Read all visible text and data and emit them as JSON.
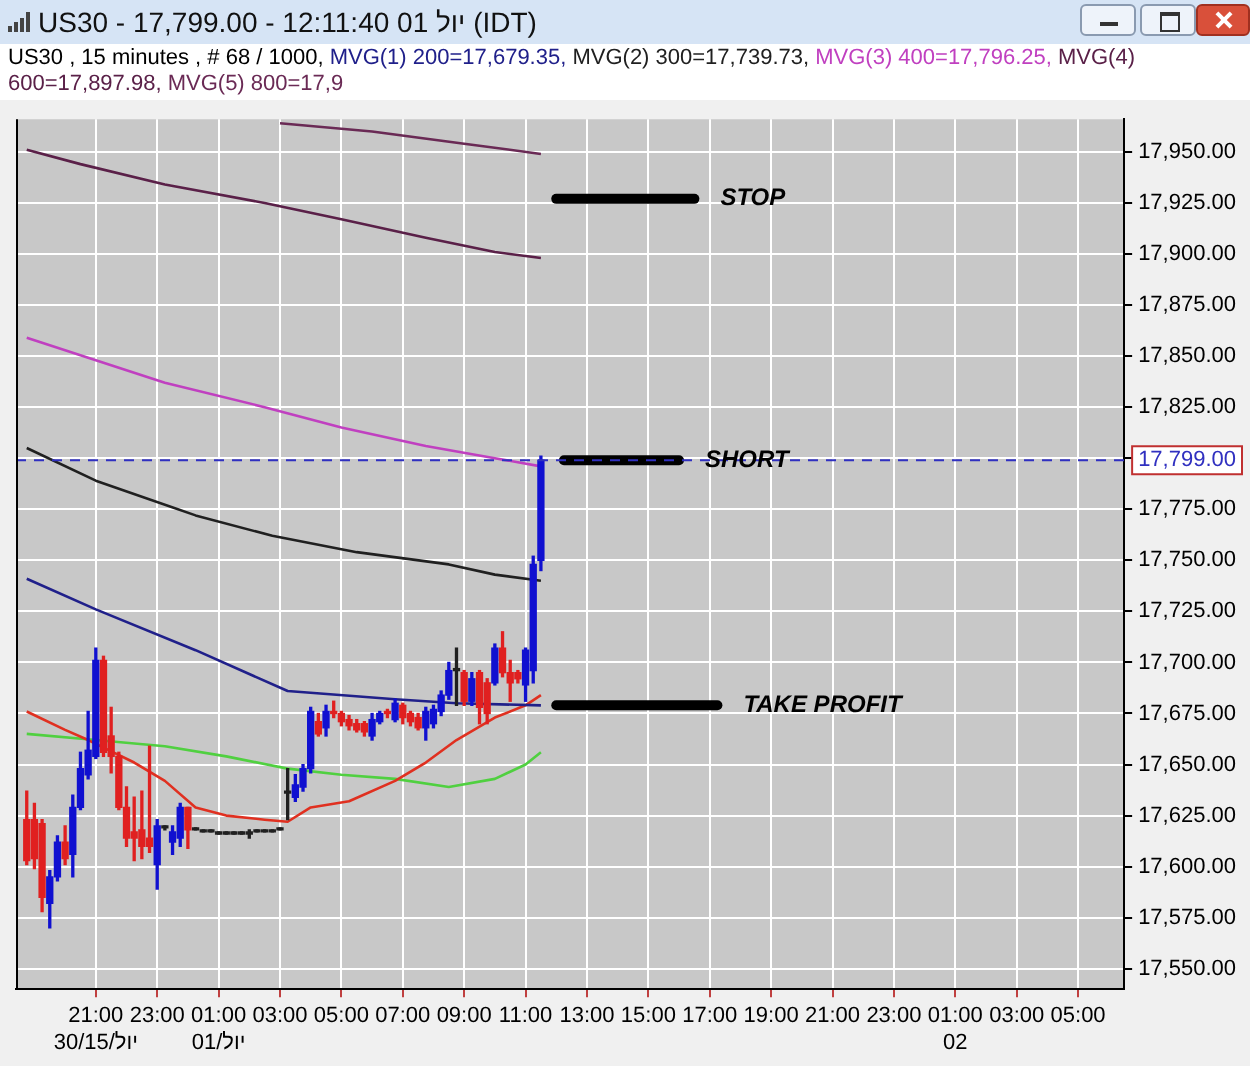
{
  "chart_data": {
    "type": "candlestick",
    "title": "US30 - 17,799.00 - 12:11:40  01 יול (IDT)",
    "subtitle": "US30 , 15 minutes , # 68 / 1000,",
    "x": [
      "--06-30T18:45",
      "--06-30T19:00",
      "--06-30T19:15",
      "--06-30T19:30",
      "--06-30T19:45",
      "--06-30T20:00",
      "--06-30T20:15",
      "--06-30T20:30",
      "--06-30T20:45",
      "--06-30T21:00",
      "--06-30T21:15",
      "--06-30T21:30",
      "--06-30T21:45",
      "--06-30T22:00",
      "--06-30T22:15",
      "--06-30T22:30",
      "--06-30T22:45",
      "--06-30T23:00",
      "--06-30T23:15",
      "--06-30T23:30",
      "--06-30T23:45",
      "--07-01T00:00",
      "--07-01T00:15",
      "--07-01T00:30",
      "--07-01T00:45",
      "--07-01T01:00",
      "--07-01T01:15",
      "--07-01T01:30",
      "--07-01T01:45",
      "--07-01T02:00",
      "--07-01T02:15",
      "--07-01T02:30",
      "--07-01T02:45",
      "--07-01T03:00",
      "--07-01T03:15",
      "--07-01T03:30",
      "--07-01T03:45",
      "--07-01T04:00",
      "--07-01T04:15",
      "--07-01T04:30",
      "--07-01T04:45",
      "--07-01T05:00",
      "--07-01T05:15",
      "--07-01T05:30",
      "--07-01T05:45",
      "--07-01T06:00",
      "--07-01T06:15",
      "--07-01T06:30",
      "--07-01T06:45",
      "--07-01T07:00",
      "--07-01T07:15",
      "--07-01T07:30",
      "--07-01T07:45",
      "--07-01T08:00",
      "--07-01T08:15",
      "--07-01T08:30",
      "--07-01T08:45",
      "--07-01T09:00",
      "--07-01T09:15",
      "--07-01T09:30",
      "--07-01T09:45",
      "--07-01T10:00",
      "--07-01T10:15",
      "--07-01T10:30",
      "--07-01T10:45",
      "--07-01T11:00",
      "--07-01T11:15",
      "--07-01T11:30"
    ],
    "ohlc": [
      [
        17623,
        17637,
        17601,
        17603
      ],
      [
        17623,
        17631,
        17599,
        17604
      ],
      [
        17621,
        17623,
        17578,
        17585
      ],
      [
        17582,
        17598,
        17570,
        17595
      ],
      [
        17595,
        17615,
        17593,
        17612
      ],
      [
        17612,
        17620,
        17601,
        17604
      ],
      [
        17606,
        17635,
        17595,
        17629
      ],
      [
        17629,
        17656,
        17628,
        17648
      ],
      [
        17645,
        17676,
        17643,
        17657
      ],
      [
        17654,
        17707,
        17653,
        17701
      ],
      [
        17701,
        17703,
        17654,
        17656
      ],
      [
        17664,
        17678,
        17646,
        17654
      ],
      [
        17654,
        17656,
        17628,
        17629
      ],
      [
        17629,
        17639,
        17610,
        17614
      ],
      [
        17617,
        17634,
        17603,
        17614
      ],
      [
        17618,
        17637,
        17604,
        17610
      ],
      [
        17614,
        17659,
        17607,
        17610
      ],
      [
        17601,
        17623,
        17589,
        17620
      ],
      [
        17619,
        17620,
        17618,
        17619
      ],
      [
        17612,
        17620,
        17606,
        17617
      ],
      [
        17614,
        17631,
        17610,
        17629
      ],
      [
        17629,
        17629,
        17609,
        17618
      ],
      [
        17618,
        17619,
        17618,
        17618
      ],
      [
        17617,
        17618,
        17617,
        17617
      ],
      [
        17617,
        17618,
        17617,
        17617
      ],
      [
        17616,
        17617,
        17616,
        17616
      ],
      [
        17616,
        17617,
        17616,
        17616
      ],
      [
        17616,
        17617,
        17616,
        17616
      ],
      [
        17616,
        17617,
        17616,
        17616
      ],
      [
        17616,
        17618,
        17614,
        17616
      ],
      [
        17617,
        17618,
        17617,
        17617
      ],
      [
        17617,
        17618,
        17617,
        17617
      ],
      [
        17617,
        17618,
        17617,
        17617
      ],
      [
        17618,
        17619,
        17618,
        17618
      ],
      [
        17636,
        17648,
        17623,
        17636
      ],
      [
        17634,
        17645,
        17632,
        17640
      ],
      [
        17639,
        17650,
        17637,
        17648
      ],
      [
        17648,
        17678,
        17646,
        17676
      ],
      [
        17671,
        17675,
        17664,
        17665
      ],
      [
        17668,
        17679,
        17664,
        17676
      ],
      [
        17676,
        17681,
        17673,
        17675
      ],
      [
        17675,
        17676,
        17669,
        17671
      ],
      [
        17672,
        17674,
        17667,
        17669
      ],
      [
        17670,
        17672,
        17666,
        17667
      ],
      [
        17670,
        17671,
        17664,
        17666
      ],
      [
        17664,
        17675,
        17662,
        17672
      ],
      [
        17671,
        17676,
        17670,
        17675
      ],
      [
        17676,
        17677,
        17673,
        17675
      ],
      [
        17672,
        17682,
        17671,
        17680
      ],
      [
        17679,
        17680,
        17670,
        17673
      ],
      [
        17675,
        17676,
        17669,
        17671
      ],
      [
        17673,
        17675,
        17667,
        17668
      ],
      [
        17668,
        17678,
        17662,
        17676
      ],
      [
        17670,
        17679,
        17668,
        17677
      ],
      [
        17676,
        17686,
        17674,
        17684
      ],
      [
        17684,
        17700,
        17682,
        17696
      ],
      [
        17696,
        17707,
        17679,
        17696
      ],
      [
        17695,
        17696,
        17679,
        17681
      ],
      [
        17681,
        17695,
        17679,
        17692
      ],
      [
        17695,
        17696,
        17670,
        17678
      ],
      [
        17690,
        17692,
        17670,
        17675
      ],
      [
        17690,
        17709,
        17689,
        17707
      ],
      [
        17707,
        17715,
        17693,
        17695
      ],
      [
        17695,
        17701,
        17681,
        17690
      ],
      [
        17695,
        17696,
        17690,
        17692
      ],
      [
        17689,
        17707,
        17681,
        17706
      ],
      [
        17696,
        17752,
        17690,
        17748
      ],
      [
        17750,
        17801,
        17745,
        17799
      ]
    ],
    "colors": [
      "#e02020",
      "#e02020",
      "#e02020",
      "#1010d0",
      "#1010d0",
      "#e02020",
      "#1010d0",
      "#1010d0",
      "#1010d0",
      "#1010d0",
      "#e02020",
      "#e02020",
      "#e02020",
      "#e02020",
      "#e02020",
      "#e02020",
      "#e02020",
      "#1010d0",
      "#202020",
      "#1010d0",
      "#1010d0",
      "#e02020",
      "#202020",
      "#202020",
      "#202020",
      "#202020",
      "#202020",
      "#202020",
      "#202020",
      "#202020",
      "#202020",
      "#202020",
      "#202020",
      "#202020",
      "#202020",
      "#1010d0",
      "#1010d0",
      "#1010d0",
      "#e02020",
      "#1010d0",
      "#e02020",
      "#e02020",
      "#e02020",
      "#e02020",
      "#e02020",
      "#1010d0",
      "#1010d0",
      "#e02020",
      "#1010d0",
      "#e02020",
      "#e02020",
      "#e02020",
      "#1010d0",
      "#1010d0",
      "#1010d0",
      "#1010d0",
      "#202020",
      "#e02020",
      "#1010d0",
      "#e02020",
      "#e02020",
      "#1010d0",
      "#e02020",
      "#e02020",
      "#e02020",
      "#1010d0",
      "#1010d0",
      "#1010d0"
    ],
    "series": [
      {
        "type": "line",
        "name": "MVG(1) 200=17,679.35,",
        "color": "#20208a",
        "x": [
          "--06-30T18:45",
          "--06-30T21:00",
          "--07-01T00:15",
          "--07-01T03:15",
          "--07-01T06:45",
          "--07-01T08:45",
          "--07-01T11:30"
        ],
        "values": [
          17741,
          17726,
          17706,
          17686,
          17682,
          17680,
          17679
        ]
      },
      {
        "type": "line",
        "name": "MVG(2) 300=17,739.73,",
        "color": "#202020",
        "x": [
          "--06-30T18:45",
          "--06-30T21:00",
          "--07-01T00:15",
          "--07-01T02:45",
          "--07-01T05:30",
          "--07-01T08:30",
          "--07-01T10:00",
          "--07-01T11:30"
        ],
        "values": [
          17805,
          17789,
          17772,
          17762,
          17754,
          17748,
          17743,
          17740
        ]
      },
      {
        "type": "line",
        "name": "MVG(3) 400=17,796.25,",
        "color": "#c040c0",
        "x": [
          "--06-30T18:45",
          "--06-30T21:00",
          "--06-30T23:15",
          "--07-01T02:30",
          "--07-01T05:00",
          "--07-01T07:45",
          "--07-01T10:00",
          "--07-01T11:30"
        ],
        "values": [
          17859,
          17848,
          17837,
          17825,
          17815,
          17806,
          17800,
          17796
        ]
      },
      {
        "type": "line",
        "name": "MVG(4) 600=17,897.98,",
        "color": "#5a2048",
        "x": [
          "--06-30T18:45",
          "--06-30T20:30",
          "--06-30T23:15",
          "--07-01T02:30",
          "--07-01T05:00",
          "--07-01T07:45",
          "--07-01T10:00",
          "--07-01T11:30"
        ],
        "values": [
          17951,
          17944,
          17934,
          17925,
          17917,
          17908,
          17901,
          17898
        ]
      },
      {
        "type": "line",
        "name": "MVG(5) 800=17,9",
        "color": "#6a2a55",
        "x": [
          "--07-01T03:00",
          "--07-01T06:00",
          "--07-01T09:00",
          "--07-01T11:30"
        ],
        "values": [
          17964,
          17960,
          17954,
          17949
        ]
      },
      {
        "type": "line",
        "color": "#e03020",
        "x": [
          "--06-30T18:45",
          "--06-30T20:00",
          "--06-30T20:45",
          "--06-30T22:15",
          "--06-30T23:15",
          "--07-01T00:15",
          "--07-01T01:15",
          "--07-01T02:30",
          "--07-01T03:15",
          "--07-01T04:00",
          "--07-01T05:15",
          "--07-01T06:45",
          "--07-01T07:45",
          "--07-01T08:45",
          "--07-01T10:00",
          "--07-01T11:00",
          "--07-01T11:30"
        ],
        "values": [
          17676,
          17667,
          17662,
          17651,
          17642,
          17629,
          17625,
          17623,
          17622,
          17629,
          17632,
          17642,
          17651,
          17662,
          17673,
          17679,
          17684
        ]
      },
      {
        "type": "line",
        "color": "#50d040",
        "x": [
          "--06-30T18:45",
          "--06-30T21:00",
          "--06-30T23:15",
          "--07-01T01:15",
          "--07-01T03:15",
          "--07-01T05:00",
          "--07-01T06:45",
          "--07-01T08:30",
          "--07-01T10:00",
          "--07-01T11:00",
          "--07-01T11:30"
        ],
        "values": [
          17665,
          17662,
          17659,
          17654,
          17648,
          17645,
          17643,
          17639,
          17643,
          17650,
          17656
        ]
      },
      {
        "type": "line",
        "color": "#000000",
        "x": [
          "--07-01T12:00",
          "--07-01T16:30"
        ],
        "values": [
          17927,
          17927
        ]
      },
      {
        "type": "line",
        "color": "#000000",
        "x": [
          "--07-01T12:15",
          "--07-01T16:00"
        ],
        "values": [
          17799,
          17799
        ]
      },
      {
        "type": "line",
        "color": "#000000",
        "x": [
          "--07-01T12:00",
          "--07-01T17:15"
        ],
        "values": [
          17679,
          17679
        ]
      }
    ],
    "annotations": [
      {
        "text": "STOP",
        "x": "--07-01T16:30",
        "y": 17927
      },
      {
        "text": "SHORT",
        "x": "--07-01T16:00",
        "y": 17799
      },
      {
        "text": "TAKE PROFIT",
        "x": "--07-01T17:15",
        "y": 17679
      }
    ],
    "ref_lines": [
      {
        "axis": "y",
        "value": 17799,
        "label": "17,799.00",
        "color": "#3030c0",
        "line_style": "dashed"
      }
    ],
    "xlim": [
      "--06-30T18:24",
      "--07-02T06:30"
    ],
    "xticks": [
      {
        "value": "--06-30T21:00",
        "label": "21:00\n30/15/יול"
      },
      {
        "value": "--06-30T23:00",
        "label": "23:00"
      },
      {
        "value": "--07-01T01:00",
        "label": "01:00\n01/יול"
      },
      {
        "value": "--07-01T03:00",
        "label": "03:00"
      },
      {
        "value": "--07-01T05:00",
        "label": "05:00"
      },
      {
        "value": "--07-01T07:00",
        "label": "07:00"
      },
      {
        "value": "--07-01T09:00",
        "label": "09:00"
      },
      {
        "value": "--07-01T11:00",
        "label": "11:00"
      },
      {
        "value": "--07-01T13:00",
        "label": "13:00"
      },
      {
        "value": "--07-01T15:00",
        "label": "15:00"
      },
      {
        "value": "--07-01T17:00",
        "label": "17:00"
      },
      {
        "value": "--07-01T19:00",
        "label": "19:00"
      },
      {
        "value": "--07-01T21:00",
        "label": "21:00"
      },
      {
        "value": "--07-01T23:00",
        "label": "23:00"
      },
      {
        "value": "--07-02T01:00",
        "label": "01:00\n02"
      },
      {
        "value": "--07-02T03:00",
        "label": "03:00"
      },
      {
        "value": "--07-02T05:00",
        "label": "05:00"
      }
    ],
    "ylim": [
      17540,
      17966
    ],
    "yticks": [
      {
        "value": 17550,
        "label": "17,550.00"
      },
      {
        "value": 17575,
        "label": "17,575.00"
      },
      {
        "value": 17600,
        "label": "17,600.00"
      },
      {
        "value": 17625,
        "label": "17,625.00"
      },
      {
        "value": 17650,
        "label": "17,650.00"
      },
      {
        "value": 17675,
        "label": "17,675.00"
      },
      {
        "value": 17700,
        "label": "17,700.00"
      },
      {
        "value": 17725,
        "label": "17,725.00"
      },
      {
        "value": 17750,
        "label": "17,750.00"
      },
      {
        "value": 17775,
        "label": "17,775.00"
      },
      {
        "value": 17800,
        "label": null
      },
      {
        "value": 17825,
        "label": "17,825.00"
      },
      {
        "value": 17850,
        "label": "17,850.00"
      },
      {
        "value": 17875,
        "label": "17,875.00"
      },
      {
        "value": 17900,
        "label": "17,900.00"
      },
      {
        "value": 17925,
        "label": "17,925.00"
      },
      {
        "value": 17950,
        "label": "17,950.00"
      }
    ],
    "grid": true,
    "legend": "top"
  }
}
